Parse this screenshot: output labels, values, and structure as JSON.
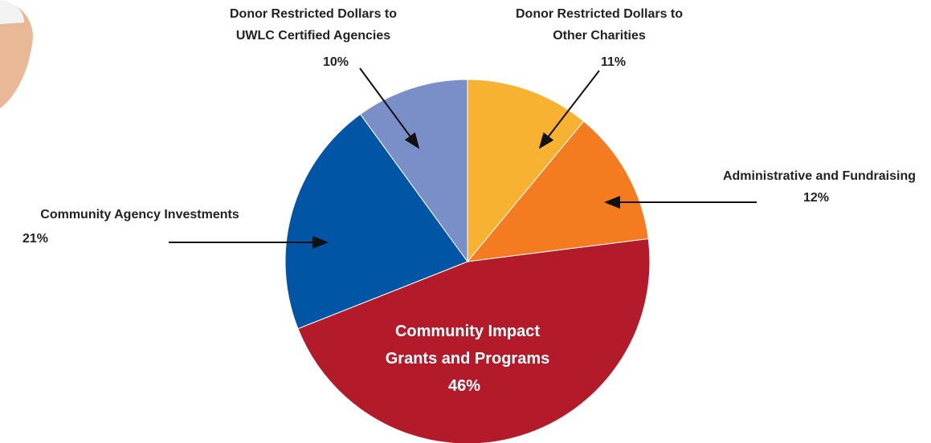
{
  "chart_data": {
    "type": "pie",
    "categories": [
      "Donor Restricted Dollars to Other Charities",
      "Administrative and Fundraising",
      "Community Impact Grants and Programs",
      "Community Agency Investments",
      "Donor Restricted Dollars to UWLC Certified Agencies"
    ],
    "values": [
      11,
      12,
      46,
      21,
      10
    ],
    "value_labels": [
      "11%",
      "12%",
      "46%",
      "21%",
      "10%"
    ],
    "colors": [
      "#f7b231",
      "#f47b20",
      "#b31b2a",
      "#0055a5",
      "#7a8fc8"
    ]
  }
}
